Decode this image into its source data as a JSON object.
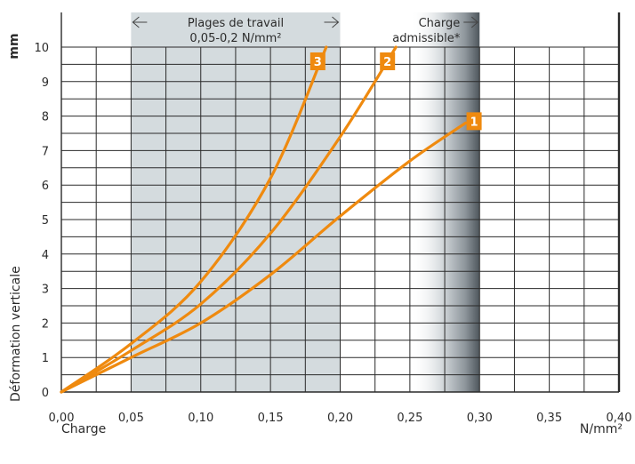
{
  "chart_data": {
    "type": "line",
    "title": "",
    "xlabel": "Charge",
    "ylabel": "Déformation verticale",
    "x_unit": "N/mm²",
    "y_unit": "mm",
    "xlim": [
      0,
      0.4
    ],
    "ylim": [
      0,
      10
    ],
    "grid": true,
    "x_ticks": [
      "0,00",
      "0,05",
      "0,10",
      "0,15",
      "0,20",
      "0,25",
      "0,30",
      "0,35",
      "0,40"
    ],
    "y_ticks": [
      "0",
      "1",
      "2",
      "3",
      "4",
      "5",
      "6",
      "7",
      "8",
      "9",
      "10"
    ],
    "regions": [
      {
        "label_line1": "Plages de travail",
        "label_line2": "0,05-0,2 N/mm²",
        "x_range": [
          0.05,
          0.2
        ],
        "color": "#d4dbde"
      },
      {
        "label_line1": "Charge",
        "label_line2": "admissible*",
        "x_range": [
          0.25,
          0.3
        ],
        "style": "gradient"
      }
    ],
    "series": [
      {
        "name": "1",
        "color": "#ef8a0f",
        "x": [
          0.0,
          0.05,
          0.1,
          0.15,
          0.2,
          0.25,
          0.29
        ],
        "y": [
          0.0,
          1.0,
          2.0,
          3.4,
          5.1,
          6.7,
          7.8
        ]
      },
      {
        "name": "2",
        "color": "#ef8a0f",
        "x": [
          0.0,
          0.05,
          0.1,
          0.15,
          0.2,
          0.24
        ],
        "y": [
          0.0,
          1.2,
          2.55,
          4.6,
          7.4,
          10.0
        ]
      },
      {
        "name": "3",
        "color": "#ef8a0f",
        "x": [
          0.0,
          0.05,
          0.1,
          0.15,
          0.19
        ],
        "y": [
          0.0,
          1.4,
          3.2,
          6.2,
          10.0
        ]
      }
    ]
  }
}
